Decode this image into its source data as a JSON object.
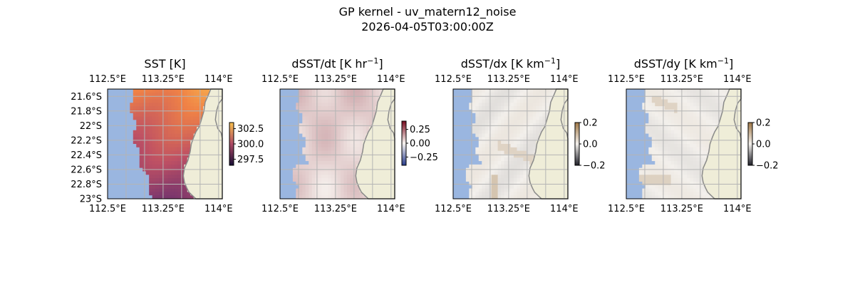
{
  "figure": {
    "suptitle_line1": "GP kernel - uv_matern12_noise",
    "suptitle_line2": "2026-04-05T03:00:00Z"
  },
  "colors": {
    "ocean_mask": "#9ab6e0",
    "land": "#efedd8",
    "coast": "#8a8a8a",
    "grid": "#b4b4b4"
  },
  "chart_data": [
    {
      "type": "heatmap",
      "title": "SST [K]",
      "title_unit": "",
      "colormap": "thermal (purple → orange)",
      "x_ticks": [
        "112.5°E",
        "113.25°E",
        "114°E"
      ],
      "y_ticks": [
        "21.6°S",
        "21.8°S",
        "22°S",
        "22.2°S",
        "22.4°S",
        "22.6°S",
        "22.8°S",
        "23°S"
      ],
      "xlim": [
        112.5,
        114.05
      ],
      "ylim": [
        -23.0,
        -21.5
      ],
      "colorbar": {
        "ticks": [
          "302.5",
          "300.0",
          "297.5"
        ],
        "tick_values": [
          302.5,
          300.0,
          297.5
        ],
        "range": [
          296.5,
          303.5
        ]
      },
      "grid": true
    },
    {
      "type": "heatmap",
      "title": "dSST/dt [K hr",
      "title_unit": "−1",
      "title_close": "]",
      "colormap": "balance (blue → white → red)",
      "x_ticks": [
        "112.5°E",
        "113.25°E",
        "114°E"
      ],
      "y_ticks": [],
      "xlim": [
        112.5,
        114.05
      ],
      "ylim": [
        -23.0,
        -21.5
      ],
      "colorbar": {
        "ticks": [
          "0.25",
          "0.00",
          "−0.25"
        ],
        "tick_values": [
          0.25,
          0.0,
          -0.25
        ],
        "range": [
          -0.4,
          0.4
        ]
      },
      "grid": true
    },
    {
      "type": "heatmap",
      "title": "dSST/dx [K km",
      "title_unit": "−1",
      "title_close": "]",
      "colormap": "diverging (black → white → orange)",
      "x_ticks": [
        "112.5°E",
        "113.25°E",
        "114°E"
      ],
      "y_ticks": [],
      "xlim": [
        112.5,
        114.05
      ],
      "ylim": [
        -23.0,
        -21.5
      ],
      "colorbar": {
        "ticks": [
          "0.2",
          "0.0",
          "−0.2"
        ],
        "tick_values": [
          0.2,
          0.0,
          -0.2
        ],
        "range": [
          -0.2,
          0.2
        ]
      },
      "grid": true
    },
    {
      "type": "heatmap",
      "title": "dSST/dy [K km",
      "title_unit": "−1",
      "title_close": "]",
      "colormap": "diverging (black → white → orange)",
      "x_ticks": [
        "112.5°E",
        "113.25°E",
        "114°E"
      ],
      "y_ticks": [],
      "xlim": [
        112.5,
        114.05
      ],
      "ylim": [
        -23.0,
        -21.5
      ],
      "colorbar": {
        "ticks": [
          "0.2",
          "0.0",
          "−0.2"
        ],
        "tick_values": [
          0.2,
          0.0,
          -0.2
        ],
        "range": [
          -0.2,
          0.2
        ]
      },
      "grid": true
    }
  ]
}
